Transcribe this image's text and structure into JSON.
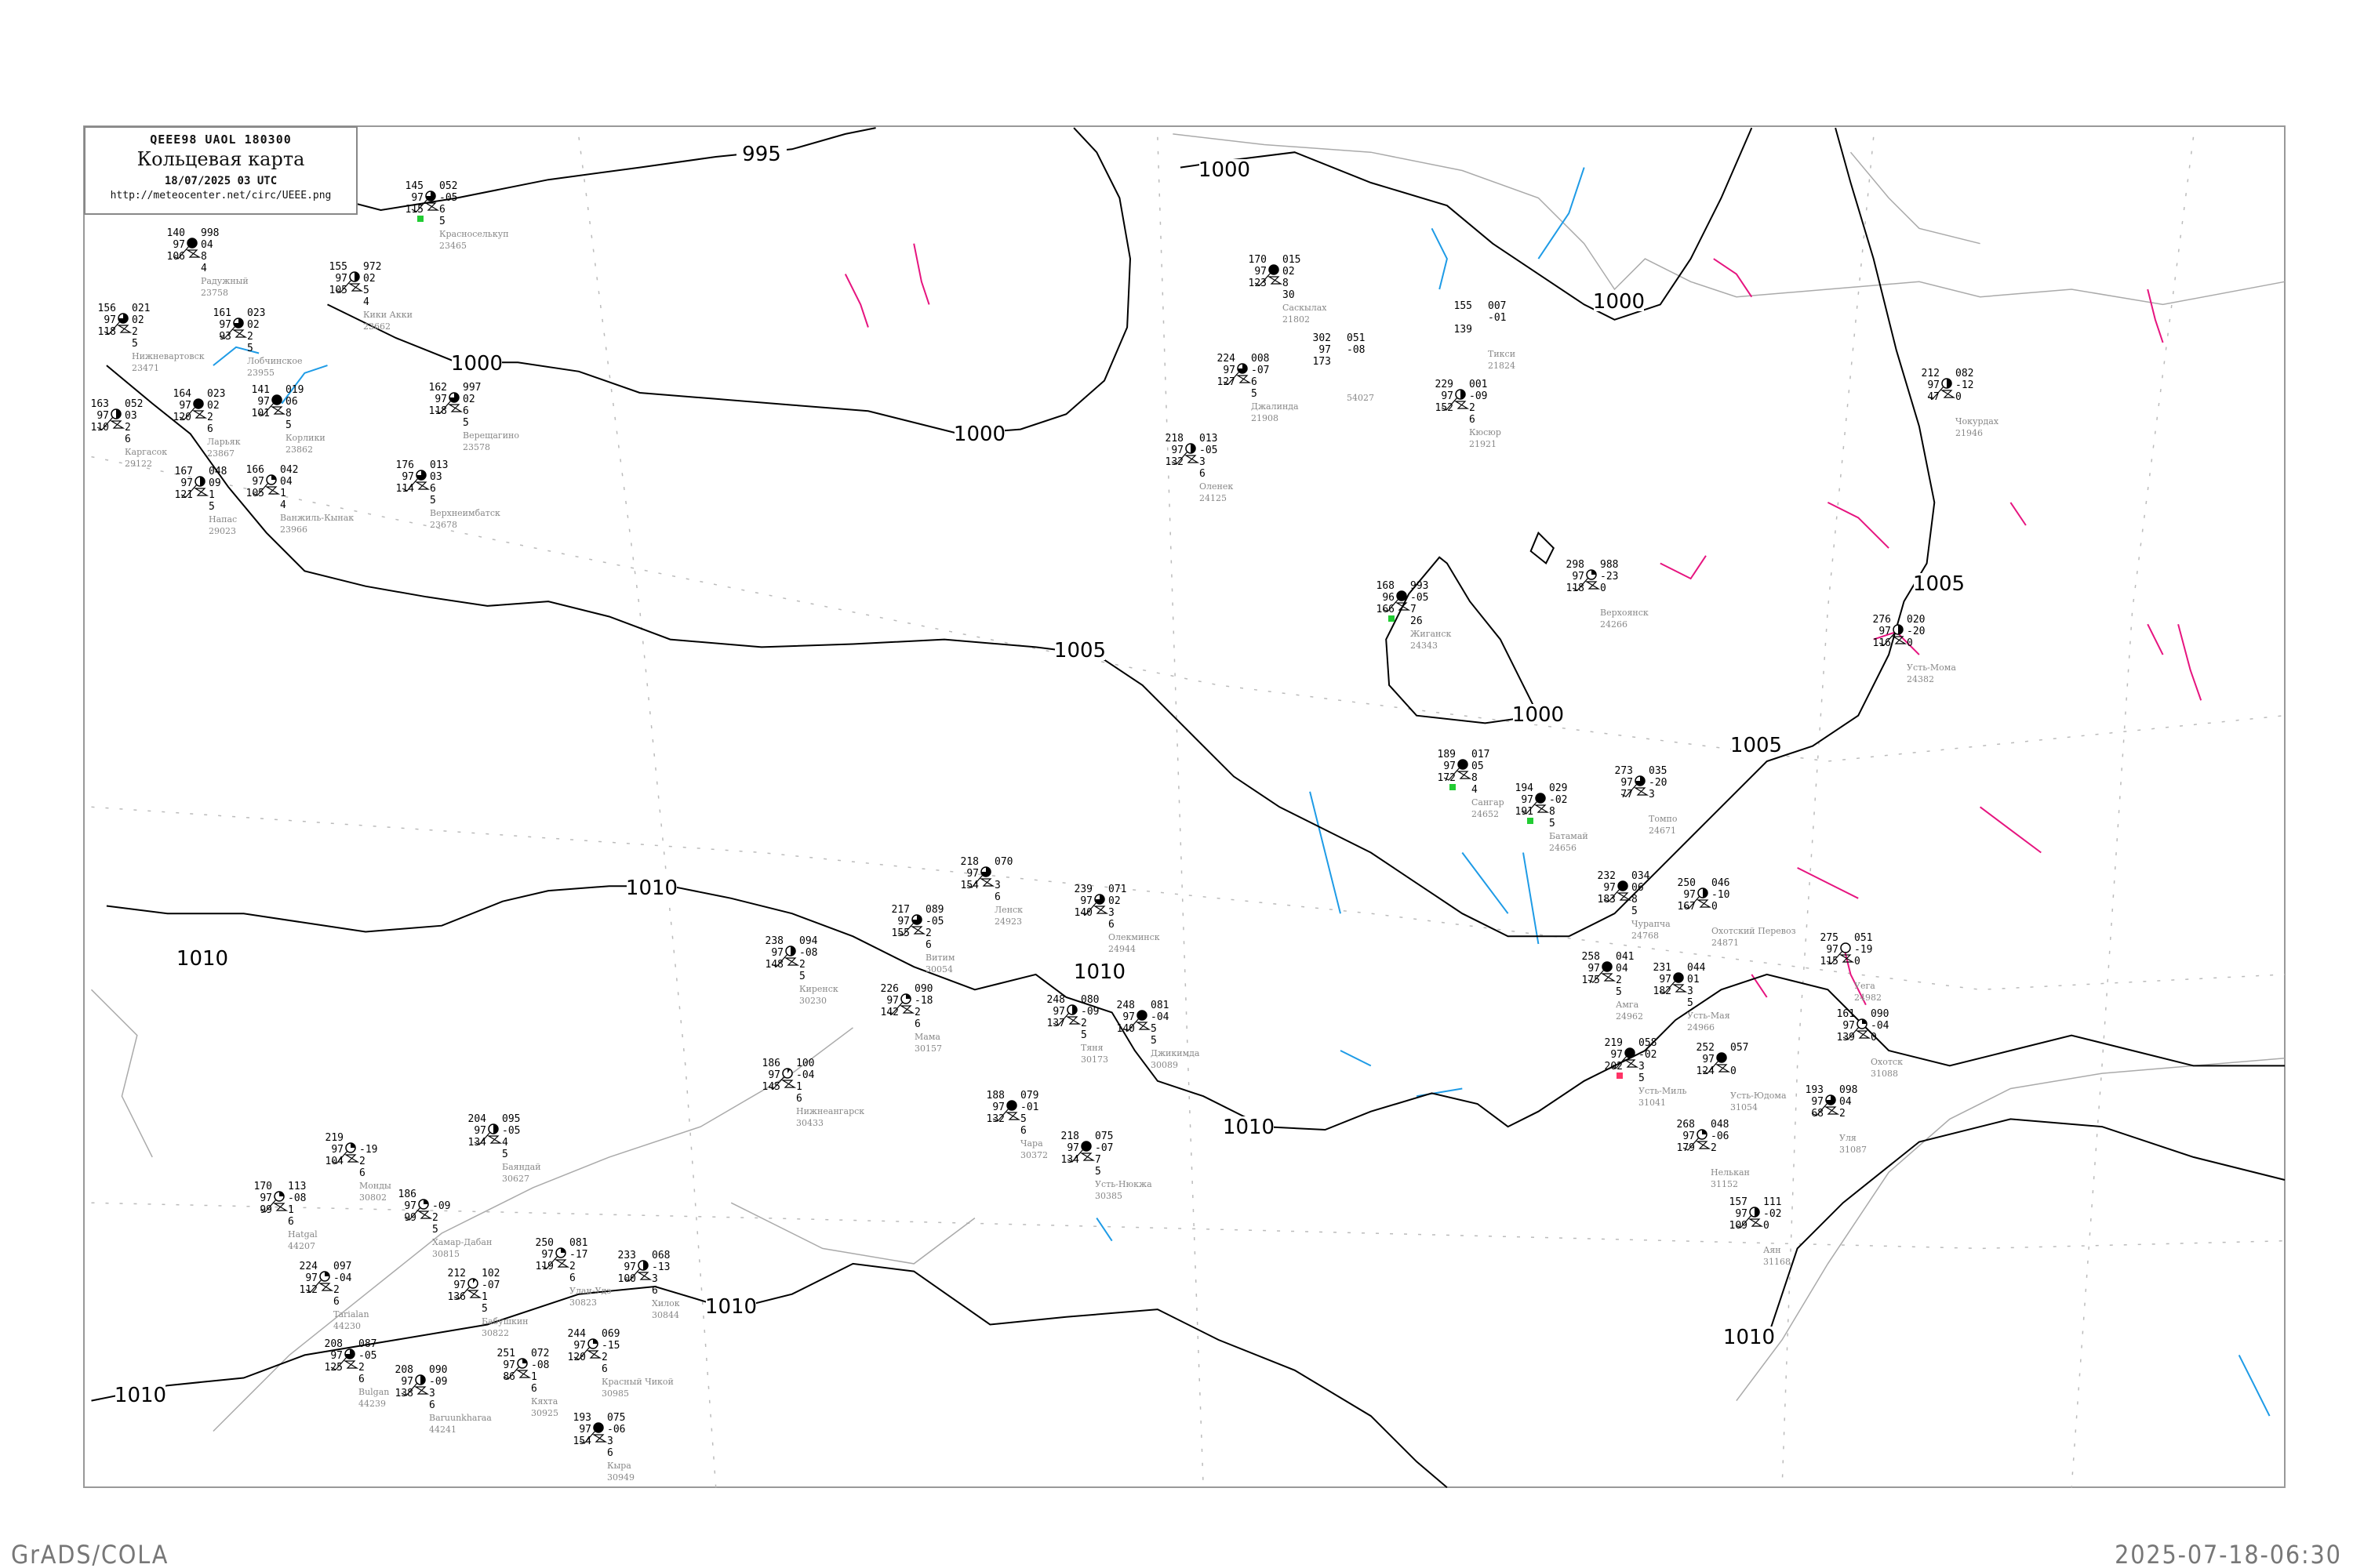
{
  "header": {
    "code_line": "QEEE98  UAOL  180300",
    "title": "Кольцевая карта",
    "datetime": "18/07/2025 03 UTC",
    "url": "http://meteocenter.net/circ/UEEE.png"
  },
  "footer": {
    "left": "GrADS/COLA",
    "right": "2025-07-18-06:30"
  },
  "colors": {
    "isobar": "#000000",
    "coastline": "#aaaaaa",
    "isotherm_cold": "#1e9be6",
    "isotherm_warm": "#e6147f",
    "precip_marker": "#22cc33",
    "alert_marker": "#ff3366",
    "station_name": "#888888"
  },
  "isobar_labels": [
    "995",
    "1000",
    "1000",
    "1000",
    "1000",
    "1000",
    "1005",
    "1005",
    "1005",
    "1010",
    "1010",
    "1010",
    "1010",
    "1010",
    "1010",
    "1010"
  ],
  "stations": [
    {
      "name": "Радужный",
      "id": "23758",
      "t": "140",
      "p": "998",
      "v": "97",
      "tend": "04",
      "dp": "106",
      "c1": "8",
      "c2": "4",
      "cloud": 1
    },
    {
      "name": "Нижневартовск",
      "id": "23471",
      "t": "156",
      "p": "021",
      "v": "97",
      "tend": "02",
      "dp": "118",
      "c1": "2",
      "c2": "5",
      "cloud": 0.75
    },
    {
      "name": "Лобчинское",
      "id": "23955",
      "t": "161",
      "p": "023",
      "v": "97",
      "tend": "02",
      "dp": "93",
      "c1": "2",
      "c2": "5",
      "cloud": 0.75
    },
    {
      "name": "Ларьяк",
      "id": "23867",
      "t": "164",
      "p": "023",
      "v": "97",
      "tend": "02",
      "dp": "120",
      "c1": "2",
      "c2": "6",
      "cloud": 1
    },
    {
      "name": "Корлики",
      "id": "23862",
      "t": "141",
      "p": "019",
      "v": "97",
      "tend": "06",
      "dp": "101",
      "c1": "8",
      "c2": "5",
      "cloud": 1
    },
    {
      "name": "Каргасок",
      "id": "29122",
      "t": "163",
      "p": "052",
      "v": "97",
      "tend": "03",
      "dp": "110",
      "c1": "2",
      "c2": "6",
      "cloud": 0.5
    },
    {
      "name": "Напас",
      "id": "29023",
      "t": "167",
      "p": "048",
      "v": "97",
      "tend": "09",
      "dp": "121",
      "c1": "1",
      "c2": "5",
      "cloud": 0.5
    },
    {
      "name": "Ванжиль-Кынак",
      "id": "23966",
      "t": "166",
      "p": "042",
      "v": "97",
      "tend": "04",
      "dp": "105",
      "c1": "1",
      "c2": "4",
      "cloud": 0.25
    },
    {
      "name": "Кики Акки",
      "id": "23662",
      "t": "155",
      "p": "972",
      "v": "97",
      "tend": "02",
      "dp": "105",
      "c1": "5",
      "c2": "4",
      "cloud": 0.5
    },
    {
      "name": "Верещагино",
      "id": "23578",
      "t": "162",
      "p": "997",
      "v": "97",
      "tend": "02",
      "dp": "118",
      "c1": "6",
      "c2": "5",
      "cloud": 0.75
    },
    {
      "name": "Верхнеимбатск",
      "id": "23678",
      "t": "176",
      "p": "013",
      "v": "97",
      "tend": "03",
      "dp": "114",
      "c1": "6",
      "c2": "5",
      "cloud": 0.75
    },
    {
      "name": "Красноселькуп",
      "id": "23465",
      "t": "145",
      "p": "052",
      "v": "97",
      "tend": "-05",
      "dp": "115",
      "c1": "6",
      "c2": "5",
      "cloud": 0.75,
      "marker": "precip"
    },
    {
      "name": "Саскылах",
      "id": "21802",
      "t": "170",
      "p": "015",
      "v": "97",
      "tend": "02",
      "dp": "123",
      "c1": "8",
      "c2": "30",
      "cloud": 1
    },
    {
      "name": "Джалинда",
      "id": "21908",
      "t": "224",
      "p": "008",
      "v": "97",
      "tend": "-07",
      "dp": "127",
      "c1": "6",
      "c2": "5",
      "cloud": 0.75
    },
    {
      "name": "",
      "id": "54027",
      "t": "302",
      "p": "051",
      "v": "97",
      "tend": "-08",
      "dp": "173",
      "c1": "",
      "c2": "",
      "cloud": null
    },
    {
      "name": "Кюсюр",
      "id": "21921",
      "t": "229",
      "p": "001",
      "v": "97",
      "tend": "-09",
      "dp": "152",
      "c1": "2",
      "c2": "6",
      "cloud": 0.5
    },
    {
      "name": "Тикси",
      "id": "21824",
      "t": "155",
      "p": "007",
      "v": "",
      "tend": "-01",
      "dp": "139",
      "c1": "",
      "c2": "",
      "cloud": null
    },
    {
      "name": "Оленек",
      "id": "24125",
      "t": "218",
      "p": "013",
      "v": "97",
      "tend": "-05",
      "dp": "132",
      "c1": "3",
      "c2": "6",
      "cloud": 0.5
    },
    {
      "name": "Жиганск",
      "id": "24343",
      "t": "168",
      "p": "993",
      "v": "96",
      "tend": "-05",
      "dp": "166",
      "c1": "7",
      "c2": "26",
      "cloud": 1,
      "marker": "precip"
    },
    {
      "name": "Верхоянск",
      "id": "24266",
      "t": "298",
      "p": "988",
      "v": "97",
      "tend": "-23",
      "dp": "118",
      "c1": "0",
      "c2": "",
      "cloud": 0.25
    },
    {
      "name": "Сангар",
      "id": "24652",
      "t": "189",
      "p": "017",
      "v": "97",
      "tend": "05",
      "dp": "172",
      "c1": "8",
      "c2": "4",
      "cloud": 1,
      "marker": "precip"
    },
    {
      "name": "Батамай",
      "id": "24656",
      "t": "194",
      "p": "029",
      "v": "97",
      "tend": "-02",
      "dp": "191",
      "c1": "8",
      "c2": "5",
      "cloud": 1,
      "marker": "precip"
    },
    {
      "name": "Томпо",
      "id": "24671",
      "t": "273",
      "p": "035",
      "v": "97",
      "tend": "-20",
      "dp": "77",
      "c1": "3",
      "c2": "",
      "cloud": 0.75
    },
    {
      "name": "Чокурдах",
      "id": "21946",
      "t": "212",
      "p": "082",
      "v": "97",
      "tend": "-12",
      "dp": "47",
      "c1": "0",
      "c2": "",
      "cloud": 0.5
    },
    {
      "name": "Усть-Мома",
      "id": "24382",
      "t": "276",
      "p": "020",
      "v": "97",
      "tend": "-20",
      "dp": "116",
      "c1": "0",
      "c2": "",
      "cloud": 0.5
    },
    {
      "name": "Ленск",
      "id": "24923",
      "t": "218",
      "p": "070",
      "v": "97",
      "tend": "",
      "dp": "154",
      "c1": "3",
      "c2": "6",
      "cloud": 0.75
    },
    {
      "name": "Витим",
      "id": "30054",
      "t": "217",
      "p": "089",
      "v": "97",
      "tend": "-05",
      "dp": "155",
      "c1": "2",
      "c2": "6",
      "cloud": 0.75
    },
    {
      "name": "Киренск",
      "id": "30230",
      "t": "238",
      "p": "094",
      "v": "97",
      "tend": "-08",
      "dp": "148",
      "c1": "2",
      "c2": "5",
      "cloud": 0.5
    },
    {
      "name": "Мама",
      "id": "30157",
      "t": "226",
      "p": "090",
      "v": "97",
      "tend": "-18",
      "dp": "142",
      "c1": "2",
      "c2": "6",
      "cloud": 0.25
    },
    {
      "name": "Олекминск",
      "id": "24944",
      "t": "239",
      "p": "071",
      "v": "97",
      "tend": "02",
      "dp": "140",
      "c1": "3",
      "c2": "6",
      "cloud": 0.75
    },
    {
      "name": "Тяня",
      "id": "30173",
      "t": "248",
      "p": "080",
      "v": "97",
      "tend": "-09",
      "dp": "137",
      "c1": "2",
      "c2": "5",
      "cloud": 0.5
    },
    {
      "name": "Джикимда",
      "id": "30089",
      "t": "248",
      "p": "081",
      "v": "97",
      "tend": "-04",
      "dp": "140",
      "c1": "5",
      "c2": "5",
      "cloud": 1
    },
    {
      "name": "Нижнеангарск",
      "id": "30433",
      "t": "186",
      "p": "100",
      "v": "97",
      "tend": "-04",
      "dp": "145",
      "c1": "1",
      "c2": "6",
      "cloud": 0.1
    },
    {
      "name": "Чара",
      "id": "30372",
      "t": "188",
      "p": "079",
      "v": "97",
      "tend": "-01",
      "dp": "132",
      "c1": "5",
      "c2": "6",
      "cloud": 1
    },
    {
      "name": "Усть-Нюкжа",
      "id": "30385",
      "t": "218",
      "p": "075",
      "v": "97",
      "tend": "-07",
      "dp": "134",
      "c1": "7",
      "c2": "5",
      "cloud": 1
    },
    {
      "name": "Чурапча",
      "id": "24768",
      "t": "232",
      "p": "034",
      "v": "97",
      "tend": "06",
      "dp": "183",
      "c1": "8",
      "c2": "5",
      "cloud": 1
    },
    {
      "name": "Охотский Перевоз",
      "id": "24871",
      "t": "250",
      "p": "046",
      "v": "97",
      "tend": "-10",
      "dp": "167",
      "c1": "0",
      "c2": "",
      "cloud": 0.5
    },
    {
      "name": "Амга",
      "id": "24962",
      "t": "258",
      "p": "041",
      "v": "97",
      "tend": "04",
      "dp": "175",
      "c1": "2",
      "c2": "5",
      "cloud": 1
    },
    {
      "name": "Усть-Мая",
      "id": "24966",
      "t": "231",
      "p": "044",
      "v": "97",
      "tend": "01",
      "dp": "182",
      "c1": "3",
      "c2": "5",
      "cloud": 1
    },
    {
      "name": "Усть-Миль",
      "id": "31041",
      "t": "219",
      "p": "058",
      "v": "97",
      "tend": "-02",
      "dp": "202",
      "c1": "3",
      "c2": "5",
      "cloud": 1,
      "marker": "alert"
    },
    {
      "name": "Усть-Юдома",
      "id": "31054",
      "t": "252",
      "p": "057",
      "v": "97",
      "tend": "",
      "dp": "124",
      "c1": "0",
      "c2": "",
      "cloud": 1
    },
    {
      "name": "Уега",
      "id": "24982",
      "t": "275",
      "p": "051",
      "v": "97",
      "tend": "-19",
      "dp": "115",
      "c1": "0",
      "c2": "",
      "cloud": 0
    },
    {
      "name": "Охотск",
      "id": "31088",
      "t": "161",
      "p": "090",
      "v": "97",
      "tend": "-04",
      "dp": "139",
      "c1": "0",
      "c2": "",
      "cloud": 0.25
    },
    {
      "name": "Уля",
      "id": "31087",
      "t": "193",
      "p": "098",
      "v": "97",
      "tend": "04",
      "dp": "68",
      "c1": "2",
      "c2": "",
      "cloud": 0.75
    },
    {
      "name": "Нелькан",
      "id": "31152",
      "t": "268",
      "p": "048",
      "v": "97",
      "tend": "-06",
      "dp": "179",
      "c1": "2",
      "c2": "",
      "cloud": 0.25
    },
    {
      "name": "Аян",
      "id": "31168",
      "t": "157",
      "p": "111",
      "v": "97",
      "tend": "-02",
      "dp": "109",
      "c1": "0",
      "c2": "",
      "cloud": 0.5
    },
    {
      "name": "Монды",
      "id": "30802",
      "t": "219",
      "p": "",
      "v": "97",
      "tend": "-19",
      "dp": "104",
      "c1": "2",
      "c2": "6",
      "cloud": 0.25
    },
    {
      "name": "Hatgal",
      "id": "44207",
      "t": "170",
      "p": "113",
      "v": "97",
      "tend": "-08",
      "dp": "99",
      "c1": "1",
      "c2": "6",
      "cloud": 0.25
    },
    {
      "name": "Tarialan",
      "id": "44230",
      "t": "224",
      "p": "097",
      "v": "97",
      "tend": "-04",
      "dp": "112",
      "c1": "2",
      "c2": "6",
      "cloud": 0.25
    },
    {
      "name": "Bulgan",
      "id": "44239",
      "t": "208",
      "p": "087",
      "v": "97",
      "tend": "-05",
      "dp": "125",
      "c1": "2",
      "c2": "6",
      "cloud": 0.75
    },
    {
      "name": "Baruunkharaa",
      "id": "44241",
      "t": "208",
      "p": "090",
      "v": "97",
      "tend": "-09",
      "dp": "138",
      "c1": "3",
      "c2": "6",
      "cloud": 0.5
    },
    {
      "name": "Хамар-Дабан",
      "id": "30815",
      "t": "186",
      "p": "",
      "v": "97",
      "tend": "-09",
      "dp": "99",
      "c1": "2",
      "c2": "5",
      "cloud": 0.25
    },
    {
      "name": "Баяндай",
      "id": "30627",
      "t": "204",
      "p": "095",
      "v": "97",
      "tend": "-05",
      "dp": "134",
      "c1": "4",
      "c2": "5",
      "cloud": 0.5
    },
    {
      "name": "Бабушкин",
      "id": "30822",
      "t": "212",
      "p": "102",
      "v": "97",
      "tend": "-07",
      "dp": "136",
      "c1": "1",
      "c2": "5",
      "cloud": 0.1
    },
    {
      "name": "Улан-Удэ",
      "id": "30823",
      "t": "250",
      "p": "081",
      "v": "97",
      "tend": "-17",
      "dp": "119",
      "c1": "2",
      "c2": "6",
      "cloud": 0.25
    },
    {
      "name": "Кяхта",
      "id": "30925",
      "t": "251",
      "p": "072",
      "v": "97",
      "tend": "-08",
      "dp": "86",
      "c1": "1",
      "c2": "6",
      "cloud": 0.25
    },
    {
      "name": "Красный Чикой",
      "id": "30985",
      "t": "244",
      "p": "069",
      "v": "97",
      "tend": "-15",
      "dp": "120",
      "c1": "2",
      "c2": "6",
      "cloud": 0.25
    },
    {
      "name": "Хилок",
      "id": "30844",
      "t": "233",
      "p": "068",
      "v": "97",
      "tend": "-13",
      "dp": "100",
      "c1": "3",
      "c2": "6",
      "cloud": 0.5
    },
    {
      "name": "Кыра",
      "id": "30949",
      "t": "193",
      "p": "075",
      "v": "97",
      "tend": "-06",
      "dp": "154",
      "c1": "3",
      "c2": "6",
      "cloud": 1
    }
  ]
}
